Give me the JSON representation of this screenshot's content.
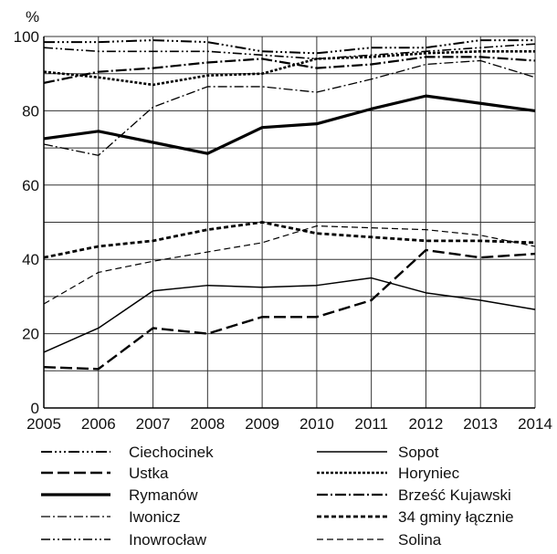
{
  "chart_data": {
    "type": "line",
    "ylabel": "%",
    "xlabel": "",
    "x": [
      2005,
      2006,
      2007,
      2008,
      2009,
      2010,
      2011,
      2012,
      2013,
      2014
    ],
    "ylim": [
      0,
      100
    ],
    "yticks": [
      0,
      20,
      40,
      60,
      80,
      100
    ],
    "grid": true,
    "legend_position": "bottom",
    "series": [
      {
        "name": "Ciechocinek",
        "values": [
          98.5,
          98.5,
          99,
          98.5,
          96,
          95.5,
          97,
          97,
          99,
          99
        ]
      },
      {
        "name": "Ustka",
        "values": [
          11,
          10.5,
          21.5,
          20,
          24.5,
          24.5,
          29,
          42.5,
          40.5,
          41.5
        ]
      },
      {
        "name": "Rymanów",
        "values": [
          72.5,
          74.5,
          71.5,
          68.5,
          75.5,
          76.5,
          80.5,
          84,
          82,
          80
        ]
      },
      {
        "name": "Iwonicz",
        "values": [
          71,
          68,
          81,
          86.5,
          86.5,
          85,
          88.5,
          92.5,
          93.5,
          89
        ]
      },
      {
        "name": "Inowrocław",
        "values": [
          97,
          96,
          96,
          96,
          95,
          94,
          95,
          96,
          97,
          98
        ]
      },
      {
        "name": "Sopot",
        "values": [
          15,
          21.5,
          31.5,
          33,
          32.5,
          33,
          35,
          31,
          29,
          26.5
        ]
      },
      {
        "name": "Horyniec",
        "values": [
          90.5,
          89,
          87,
          89.5,
          90,
          94,
          94.5,
          95.5,
          96,
          96
        ]
      },
      {
        "name": "Brześć Kujawski",
        "values": [
          87.5,
          90.5,
          91.5,
          93,
          94,
          91.5,
          92.5,
          94.5,
          94.5,
          93.5
        ]
      },
      {
        "name": "34 gminy łącznie",
        "values": [
          40.5,
          43.5,
          45,
          48,
          50,
          47,
          46,
          45,
          45,
          44.5
        ]
      },
      {
        "name": "Solina",
        "values": [
          28,
          36.5,
          39.5,
          42,
          44.5,
          49,
          48.5,
          48,
          46.5,
          43.5
        ]
      }
    ]
  }
}
